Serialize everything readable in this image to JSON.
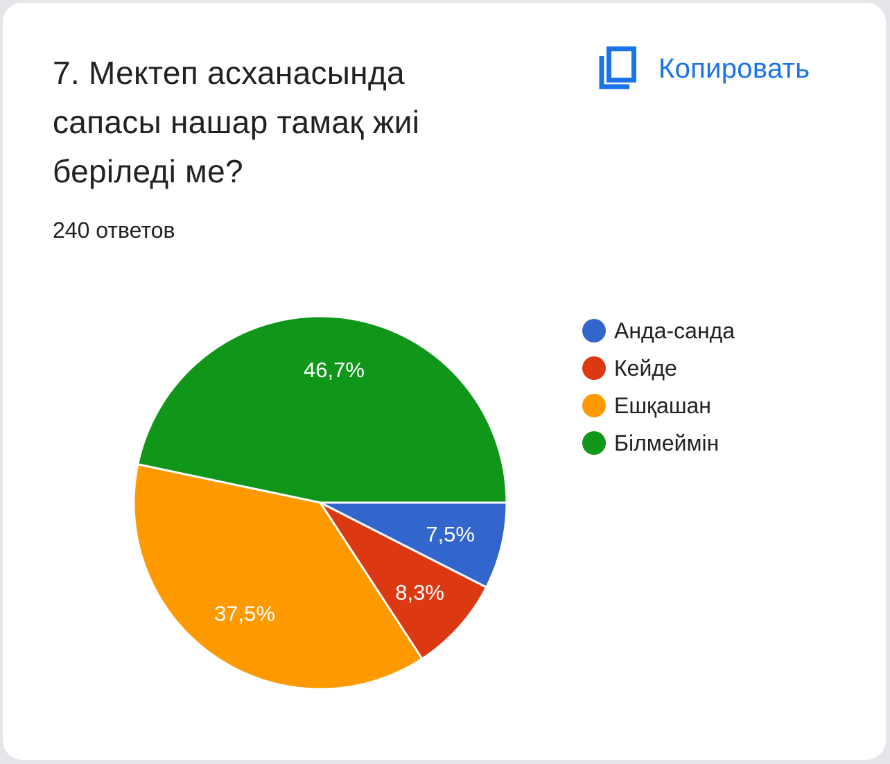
{
  "card": {
    "title": "7. Мектеп асханасында сапасы нашар тамақ жиі беріледі ме?",
    "responses": "240 ответов",
    "copy_label": "Копировать",
    "copy_icon": "copy-icon",
    "accent_color": "#1a73e8"
  },
  "chart_data": {
    "type": "pie",
    "categories": [
      "Анда-санда",
      "Кейде",
      "Ешқашан",
      "Білмеймін"
    ],
    "values": [
      7.5,
      8.3,
      37.5,
      46.7
    ],
    "labels": [
      "7,5%",
      "8,3%",
      "37,5%",
      "46,7%"
    ],
    "colors": [
      "#3366cc",
      "#dc3912",
      "#ff9900",
      "#109618"
    ],
    "legend_position": "right"
  }
}
